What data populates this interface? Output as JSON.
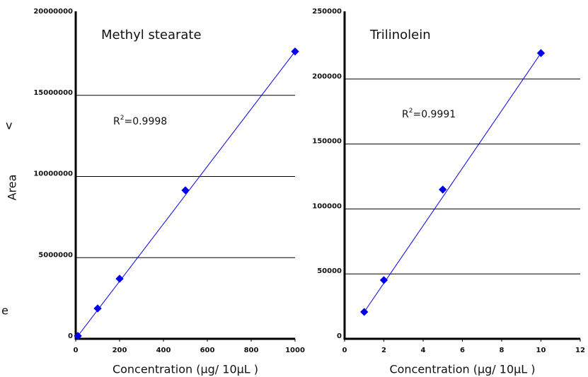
{
  "chart_data": [
    {
      "type": "scatter",
      "title": "Methyl stearate",
      "x_label": "Concentration (μg/ 10μL )",
      "y_label": "Area",
      "r2": {
        "base": "R",
        "sup": "2",
        "text": "=0.9998"
      },
      "series": [
        {
          "color": "#0000ee",
          "x": [
            10,
            100,
            200,
            500,
            1000
          ],
          "values": [
            180000,
            1870000,
            3700000,
            9150000,
            17700000
          ]
        }
      ],
      "xlim": [
        0,
        1000
      ],
      "xticks": [
        0,
        200,
        400,
        600,
        800,
        1000
      ],
      "ylim": [
        0,
        20000000
      ],
      "yticks": [
        0,
        5000000,
        10000000,
        15000000,
        20000000
      ],
      "grid": true
    },
    {
      "type": "scatter",
      "title": "Trilinolein",
      "x_label": "Concentration (μg/ 10μL )",
      "r2": {
        "base": "R",
        "sup": "2",
        "text": "=0.9991"
      },
      "series": [
        {
          "color": "#0000ee",
          "x": [
            1,
            2,
            5,
            10
          ],
          "values": [
            20700,
            45200,
            114900,
            220000
          ]
        }
      ],
      "xlim": [
        0,
        12
      ],
      "xticks": [
        0,
        2,
        4,
        6,
        8,
        10,
        12
      ],
      "ylim": [
        0,
        250000
      ],
      "yticks": [
        0,
        50000,
        100000,
        150000,
        200000,
        250000
      ],
      "grid": true
    }
  ],
  "side_fragments": [
    "v",
    "e"
  ]
}
